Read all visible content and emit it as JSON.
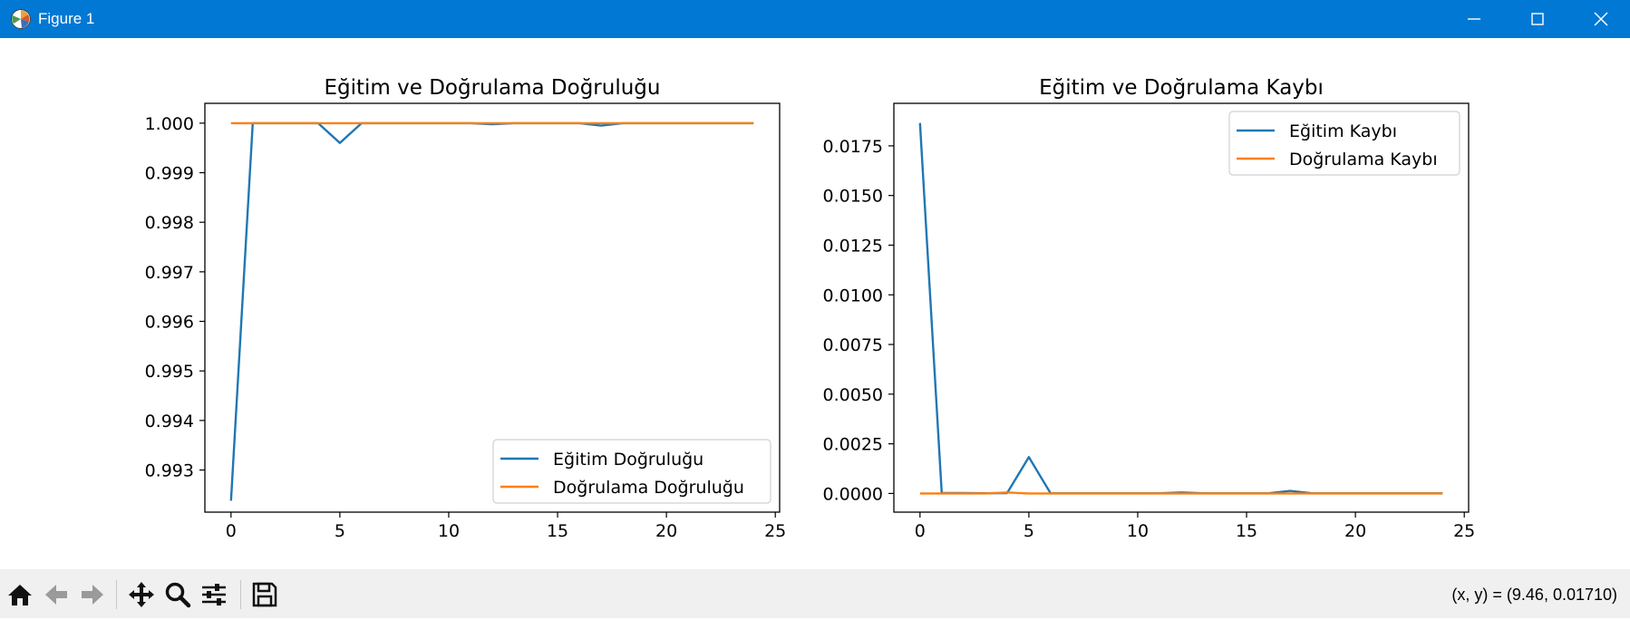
{
  "window": {
    "title": "Figure 1"
  },
  "status": {
    "coordinates": "(x, y) = (9.46, 0.01710)"
  },
  "toolbar": {
    "icons": [
      "home-icon",
      "back-arrow-icon",
      "forward-arrow-icon",
      "pan-move-icon",
      "zoom-magnifier-icon",
      "configure-subplots-icon",
      "save-floppy-icon"
    ]
  },
  "colors": {
    "train": "#1f77b4",
    "val": "#ff7f0e",
    "titlebar": "#0078d4"
  },
  "chart_data": [
    {
      "type": "line",
      "title": "Eğitim ve Doğrulama Doğruluğu",
      "xlabel": "",
      "ylabel": "",
      "xlim": [
        -1.2,
        25.2
      ],
      "ylim": [
        0.99215,
        1.0004
      ],
      "xticks": [
        0,
        5,
        10,
        15,
        20,
        25
      ],
      "yticks": [
        0.993,
        0.994,
        0.995,
        0.996,
        0.997,
        0.998,
        0.999,
        1.0
      ],
      "ytick_labels": [
        "0.993",
        "0.994",
        "0.995",
        "0.996",
        "0.997",
        "0.998",
        "0.999",
        "1.000"
      ],
      "legend": "lower-right",
      "x": [
        0,
        1,
        2,
        3,
        4,
        5,
        6,
        7,
        8,
        9,
        10,
        11,
        12,
        13,
        14,
        15,
        16,
        17,
        18,
        19,
        20,
        21,
        22,
        23,
        24
      ],
      "series": [
        {
          "name": "Eğitim Doğruluğu",
          "color": "#1f77b4",
          "values": [
            0.99238,
            1.0,
            1.0,
            1.0,
            1.0,
            0.9996,
            1.0,
            1.0,
            1.0,
            1.0,
            1.0,
            1.0,
            0.99998,
            1.0,
            1.0,
            1.0,
            1.0,
            0.99995,
            1.0,
            1.0,
            1.0,
            1.0,
            1.0,
            1.0,
            1.0
          ]
        },
        {
          "name": "Doğrulama Doğruluğu",
          "color": "#ff7f0e",
          "values": [
            1.0,
            1.0,
            1.0,
            1.0,
            1.0,
            1.0,
            1.0,
            1.0,
            1.0,
            1.0,
            1.0,
            1.0,
            1.0,
            1.0,
            1.0,
            1.0,
            1.0,
            1.0,
            1.0,
            1.0,
            1.0,
            1.0,
            1.0,
            1.0,
            1.0
          ]
        }
      ]
    },
    {
      "type": "line",
      "title": "Eğitim ve Doğrulama Kaybı",
      "xlabel": "",
      "ylabel": "",
      "xlim": [
        -1.2,
        25.2
      ],
      "ylim": [
        -0.00094,
        0.01964
      ],
      "xticks": [
        0,
        5,
        10,
        15,
        20,
        25
      ],
      "yticks": [
        0.0,
        0.0025,
        0.005,
        0.0075,
        0.01,
        0.0125,
        0.015,
        0.0175
      ],
      "ytick_labels": [
        "0.0000",
        "0.0025",
        "0.0050",
        "0.0075",
        "0.0100",
        "0.0125",
        "0.0150",
        "0.0175"
      ],
      "legend": "upper-right",
      "x": [
        0,
        1,
        2,
        3,
        4,
        5,
        6,
        7,
        8,
        9,
        10,
        11,
        12,
        13,
        14,
        15,
        16,
        17,
        18,
        19,
        20,
        21,
        22,
        23,
        24
      ],
      "series": [
        {
          "name": "Eğitim Kaybı",
          "color": "#1f77b4",
          "values": [
            0.01865,
            2e-05,
            2e-05,
            1e-05,
            2e-05,
            0.00183,
            1e-05,
            1e-05,
            1e-05,
            1e-05,
            1e-05,
            1e-05,
            5e-05,
            1e-05,
            1e-05,
            1e-05,
            1e-05,
            0.00013,
            1e-05,
            1e-05,
            1e-05,
            1e-05,
            1e-05,
            1e-05,
            1e-05
          ]
        },
        {
          "name": "Doğrulama Kaybı",
          "color": "#ff7f0e",
          "values": [
            0.0,
            0.0,
            0.0,
            0.0,
            5e-05,
            0.0,
            0.0,
            0.0,
            0.0,
            0.0,
            0.0,
            0.0,
            0.0,
            0.0,
            0.0,
            0.0,
            0.0,
            0.0,
            0.0,
            0.0,
            0.0,
            0.0,
            0.0,
            0.0,
            0.0
          ]
        }
      ]
    }
  ]
}
